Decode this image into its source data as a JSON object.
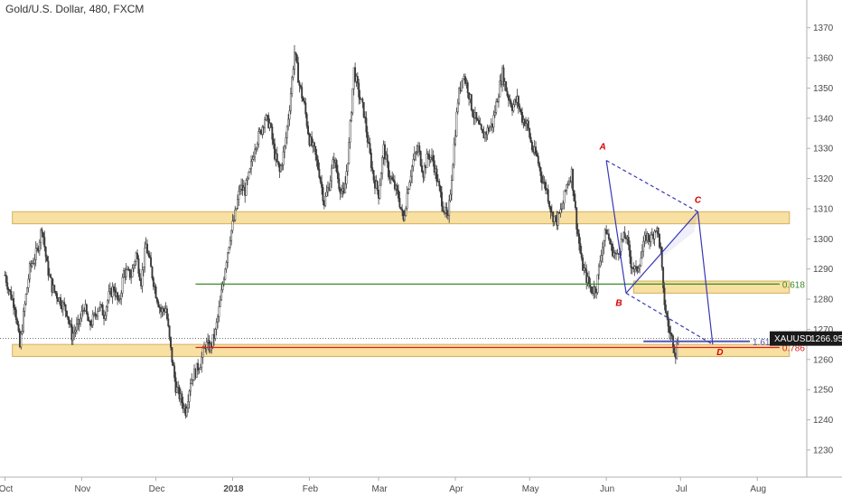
{
  "chart_title": "Gold/U.S. Dollar, 480, FXCM",
  "colors": {
    "zone_fill": "#f8dfa2",
    "zone_stroke": "#d2b25e",
    "candles": "#3a3a3a",
    "harmonic": "#3838b4",
    "level_618": "#3c8a28",
    "level_786": "#e01b1b",
    "level_1618": "#5656b8",
    "point_label": "#d40000",
    "badge": "#1a1a1a"
  },
  "chart_data": {
    "type": "candlestick",
    "symbol": "XAUUSD",
    "timeframe": "480",
    "ylim": [
      1221,
      1375
    ],
    "y_ticks": [
      1230,
      1240,
      1250,
      1260,
      1270,
      1280,
      1290,
      1300,
      1310,
      1320,
      1330,
      1340,
      1350,
      1360,
      1370
    ],
    "x_ticks": [
      {
        "label": "Oct",
        "day": 0
      },
      {
        "label": "Nov",
        "day": 31
      },
      {
        "label": "Dec",
        "day": 61
      },
      {
        "label": "2018",
        "day": 92
      },
      {
        "label": "Feb",
        "day": 123
      },
      {
        "label": "Mar",
        "day": 151
      },
      {
        "label": "Apr",
        "day": 182
      },
      {
        "label": "May",
        "day": 212
      },
      {
        "label": "Jun",
        "day": 243
      },
      {
        "label": "Jul",
        "day": 273
      },
      {
        "label": "Aug",
        "day": 304
      }
    ],
    "price_path": [
      [
        0,
        1288
      ],
      [
        2,
        1282
      ],
      [
        4,
        1278
      ],
      [
        6,
        1264
      ],
      [
        8,
        1278
      ],
      [
        10,
        1290
      ],
      [
        13,
        1296
      ],
      [
        15,
        1304
      ],
      [
        17,
        1291
      ],
      [
        19,
        1284
      ],
      [
        22,
        1280
      ],
      [
        25,
        1276
      ],
      [
        27,
        1268
      ],
      [
        30,
        1272
      ],
      [
        32,
        1278
      ],
      [
        34,
        1271
      ],
      [
        36,
        1274
      ],
      [
        38,
        1278
      ],
      [
        40,
        1275
      ],
      [
        42,
        1281
      ],
      [
        44,
        1284
      ],
      [
        46,
        1278
      ],
      [
        48,
        1289
      ],
      [
        51,
        1288
      ],
      [
        53,
        1295
      ],
      [
        55,
        1286
      ],
      [
        57,
        1298
      ],
      [
        59,
        1290
      ],
      [
        61,
        1282
      ],
      [
        63,
        1276
      ],
      [
        65,
        1277
      ],
      [
        67,
        1263
      ],
      [
        69,
        1251
      ],
      [
        71,
        1247
      ],
      [
        73,
        1243
      ],
      [
        75,
        1253
      ],
      [
        77,
        1256
      ],
      [
        79,
        1259
      ],
      [
        81,
        1265
      ],
      [
        83,
        1264
      ],
      [
        85,
        1269
      ],
      [
        87,
        1279
      ],
      [
        89,
        1291
      ],
      [
        91,
        1301
      ],
      [
        93,
        1308
      ],
      [
        95,
        1317
      ],
      [
        97,
        1316
      ],
      [
        99,
        1322
      ],
      [
        101,
        1331
      ],
      [
        103,
        1335
      ],
      [
        105,
        1340
      ],
      [
        107,
        1338
      ],
      [
        109,
        1328
      ],
      [
        111,
        1322
      ],
      [
        113,
        1330
      ],
      [
        115,
        1344
      ],
      [
        117,
        1362
      ],
      [
        119,
        1351
      ],
      [
        121,
        1344
      ],
      [
        123,
        1333
      ],
      [
        125,
        1329
      ],
      [
        127,
        1322
      ],
      [
        129,
        1312
      ],
      [
        131,
        1318
      ],
      [
        133,
        1327
      ],
      [
        135,
        1318
      ],
      [
        137,
        1314
      ],
      [
        139,
        1331
      ],
      [
        141,
        1356
      ],
      [
        143,
        1348
      ],
      [
        145,
        1342
      ],
      [
        147,
        1330
      ],
      [
        149,
        1320
      ],
      [
        151,
        1315
      ],
      [
        153,
        1330
      ],
      [
        155,
        1322
      ],
      [
        157,
        1318
      ],
      [
        159,
        1314
      ],
      [
        161,
        1306
      ],
      [
        163,
        1318
      ],
      [
        165,
        1326
      ],
      [
        167,
        1330
      ],
      [
        169,
        1322
      ],
      [
        171,
        1328
      ],
      [
        173,
        1326
      ],
      [
        175,
        1318
      ],
      [
        177,
        1311
      ],
      [
        179,
        1306
      ],
      [
        181,
        1326
      ],
      [
        183,
        1346
      ],
      [
        185,
        1355
      ],
      [
        187,
        1350
      ],
      [
        189,
        1342
      ],
      [
        191,
        1338
      ],
      [
        193,
        1334
      ],
      [
        195,
        1336
      ],
      [
        197,
        1338
      ],
      [
        199,
        1347
      ],
      [
        201,
        1355
      ],
      [
        203,
        1348
      ],
      [
        205,
        1344
      ],
      [
        207,
        1346
      ],
      [
        209,
        1340
      ],
      [
        211,
        1338
      ],
      [
        213,
        1330
      ],
      [
        215,
        1327
      ],
      [
        217,
        1320
      ],
      [
        219,
        1316
      ],
      [
        221,
        1308
      ],
      [
        223,
        1306
      ],
      [
        225,
        1310
      ],
      [
        227,
        1318
      ],
      [
        229,
        1322
      ],
      [
        231,
        1305
      ],
      [
        233,
        1292
      ],
      [
        235,
        1287
      ],
      [
        237,
        1283
      ],
      [
        239,
        1284
      ],
      [
        241,
        1296
      ],
      [
        243,
        1303
      ],
      [
        245,
        1297
      ],
      [
        247,
        1294
      ],
      [
        249,
        1299
      ],
      [
        251,
        1301
      ],
      [
        253,
        1292
      ],
      [
        255,
        1289
      ],
      [
        257,
        1294
      ],
      [
        259,
        1301
      ],
      [
        261,
        1300
      ],
      [
        263,
        1304
      ],
      [
        264,
        1301
      ],
      [
        265,
        1296
      ],
      [
        266,
        1282
      ],
      [
        267,
        1276
      ],
      [
        268,
        1271
      ],
      [
        269,
        1268
      ],
      [
        270,
        1266
      ],
      [
        271,
        1262
      ],
      [
        272,
        1266.95
      ]
    ],
    "zones": [
      {
        "name": "resistance-zone",
        "from_day": 3,
        "to_day": 317,
        "low": 1305,
        "high": 1309
      },
      {
        "name": "mid-zone",
        "from_day": 254,
        "to_day": 317,
        "low": 1282,
        "high": 1286
      },
      {
        "name": "support-zone",
        "from_day": 3,
        "to_day": 317,
        "low": 1261,
        "high": 1265
      }
    ],
    "levels": [
      {
        "label": "0.618",
        "value": 1285,
        "from_day": 77,
        "to_day": 313,
        "color": "#3c8a28"
      },
      {
        "label": "0.786",
        "value": 1264,
        "from_day": 77,
        "to_day": 313,
        "color": "#e01b1b"
      },
      {
        "label": "1.618",
        "value": 1266,
        "from_day": 258,
        "to_day": 301,
        "color": "#5656b8"
      }
    ],
    "harmonic_points": [
      {
        "label": "A",
        "day": 243,
        "price": 1326
      },
      {
        "label": "B",
        "day": 251,
        "price": 1282
      },
      {
        "label": "C",
        "day": 280,
        "price": 1309
      },
      {
        "label": "D",
        "day": 286,
        "price": 1265
      }
    ],
    "current_price": {
      "symbol": "XAUUSD",
      "value": "1266.95",
      "price": 1266.95
    }
  }
}
